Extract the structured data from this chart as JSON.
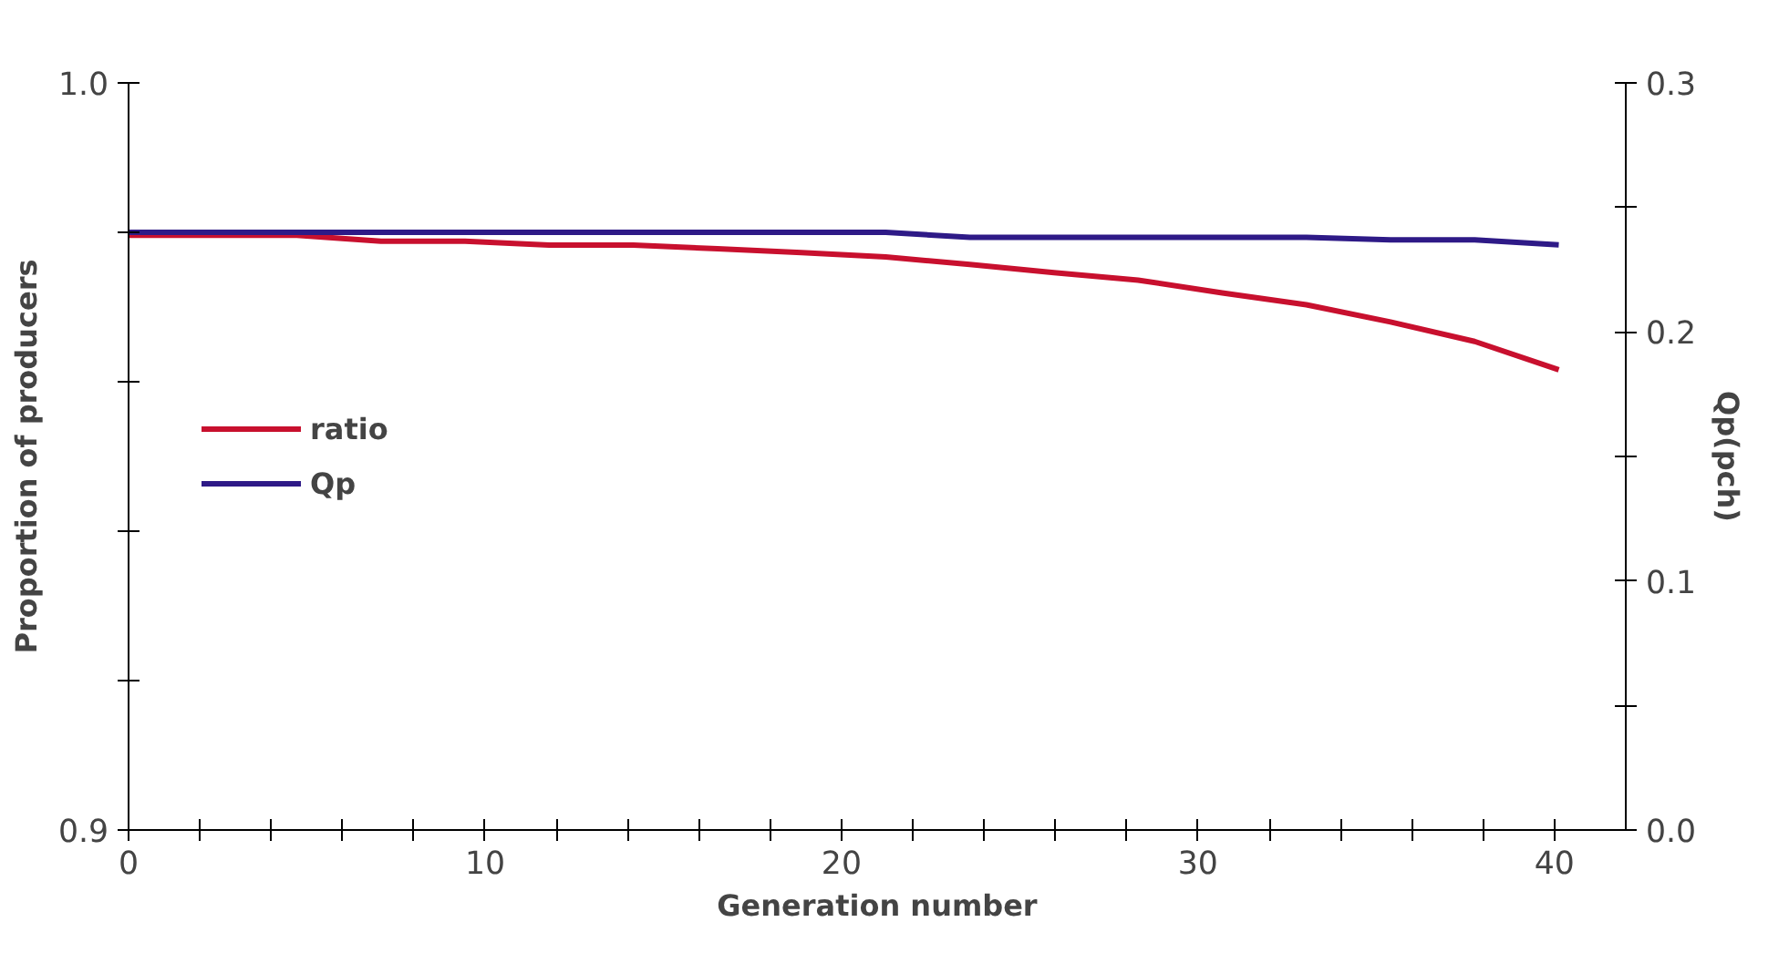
{
  "chart_data": {
    "type": "line",
    "x": [
      0,
      2.36,
      4.72,
      7.08,
      9.44,
      11.8,
      14.16,
      16.52,
      18.88,
      21.24,
      23.6,
      25.96,
      28.32,
      30.68,
      33.04,
      35.4,
      37.76,
      40.12
    ],
    "series": [
      {
        "name": "ratio",
        "color": "#c8102e",
        "values": [
          0.9796,
          0.9796,
          0.9796,
          0.9788,
          0.9788,
          0.9783,
          0.9783,
          0.9778,
          0.9773,
          0.9767,
          0.9757,
          0.9746,
          0.9736,
          0.9719,
          0.9703,
          0.968,
          0.9654,
          0.9616
        ]
      },
      {
        "name": "Qp",
        "color": "#2e1a87",
        "axis": "y2",
        "values": [
          0.24,
          0.24,
          0.24,
          0.24,
          0.24,
          0.24,
          0.24,
          0.24,
          0.24,
          0.24,
          0.238,
          0.238,
          0.238,
          0.238,
          0.238,
          0.237,
          0.237,
          0.235
        ]
      }
    ],
    "xlabel": "Generation number",
    "ylabel": "Proportion of producers",
    "y2label": "Qp(pch)",
    "xlim": [
      0,
      42
    ],
    "xticks": [
      0,
      {
        "value": 2,
        "label": null
      },
      {
        "value": 4,
        "label": null
      },
      {
        "value": 6,
        "label": null
      },
      {
        "value": 8,
        "label": null
      },
      10,
      {
        "value": 12,
        "label": null
      },
      {
        "value": 14,
        "label": null
      },
      {
        "value": 16,
        "label": null
      },
      {
        "value": 18,
        "label": null
      },
      20,
      {
        "value": 22,
        "label": null
      },
      {
        "value": 24,
        "label": null
      },
      {
        "value": 26,
        "label": null
      },
      {
        "value": 28,
        "label": null
      },
      30,
      {
        "value": 32,
        "label": null
      },
      {
        "value": 34,
        "label": null
      },
      {
        "value": 36,
        "label": null
      },
      {
        "value": 38,
        "label": null
      },
      40
    ],
    "ylim": [
      0.9,
      1.0
    ],
    "yticks": [
      {
        "value": 0.9,
        "label": "0.9"
      },
      {
        "value": 0.92,
        "label": null
      },
      {
        "value": 0.94,
        "label": null
      },
      {
        "value": 0.96,
        "label": null
      },
      {
        "value": 0.98,
        "label": null
      },
      {
        "value": 1.0,
        "label": "1.0"
      }
    ],
    "y2lim": [
      0,
      0.3
    ],
    "y2ticks": [
      {
        "value": 0,
        "label": "0.0"
      },
      {
        "value": 0.05,
        "label": null
      },
      {
        "value": 0.1,
        "label": "0.1"
      },
      {
        "value": 0.15,
        "label": null
      },
      {
        "value": 0.2,
        "label": "0.2"
      },
      {
        "value": 0.25,
        "label": null
      },
      {
        "value": 0.3,
        "label": "0.3"
      }
    ],
    "legend": "left",
    "grid": false,
    "line_style": "solid"
  }
}
